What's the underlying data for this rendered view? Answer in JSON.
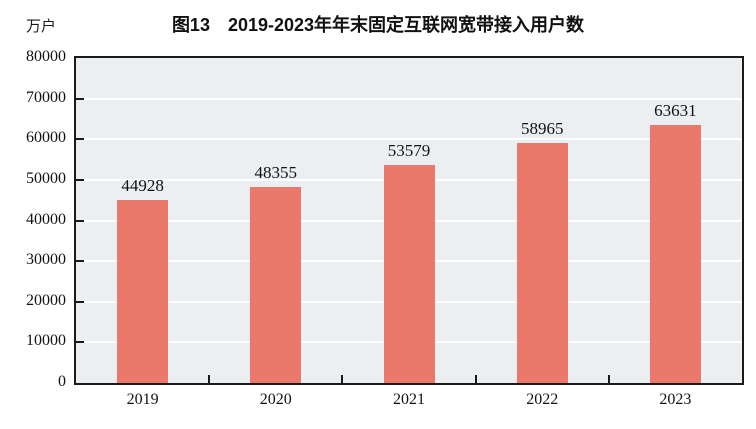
{
  "chart_data": {
    "type": "bar",
    "title": "图13　2019-2023年年末固定互联网宽带接入用户数",
    "ylabel": "万户",
    "xlabel": "",
    "categories": [
      "2019",
      "2020",
      "2021",
      "2022",
      "2023"
    ],
    "values": [
      44928,
      48355,
      53579,
      58965,
      63631
    ],
    "ylim": [
      0,
      80000
    ],
    "y_ticks": [
      0,
      10000,
      20000,
      30000,
      40000,
      50000,
      60000,
      70000,
      80000
    ],
    "grid": true,
    "legend_position": "none",
    "colors": {
      "bar": "#ea786b",
      "plot_bg": "#ebeff2",
      "gridline": "#ffffff",
      "axis": "#1a1a1a",
      "text": "#111111",
      "page_bg": "#ffffff"
    }
  }
}
